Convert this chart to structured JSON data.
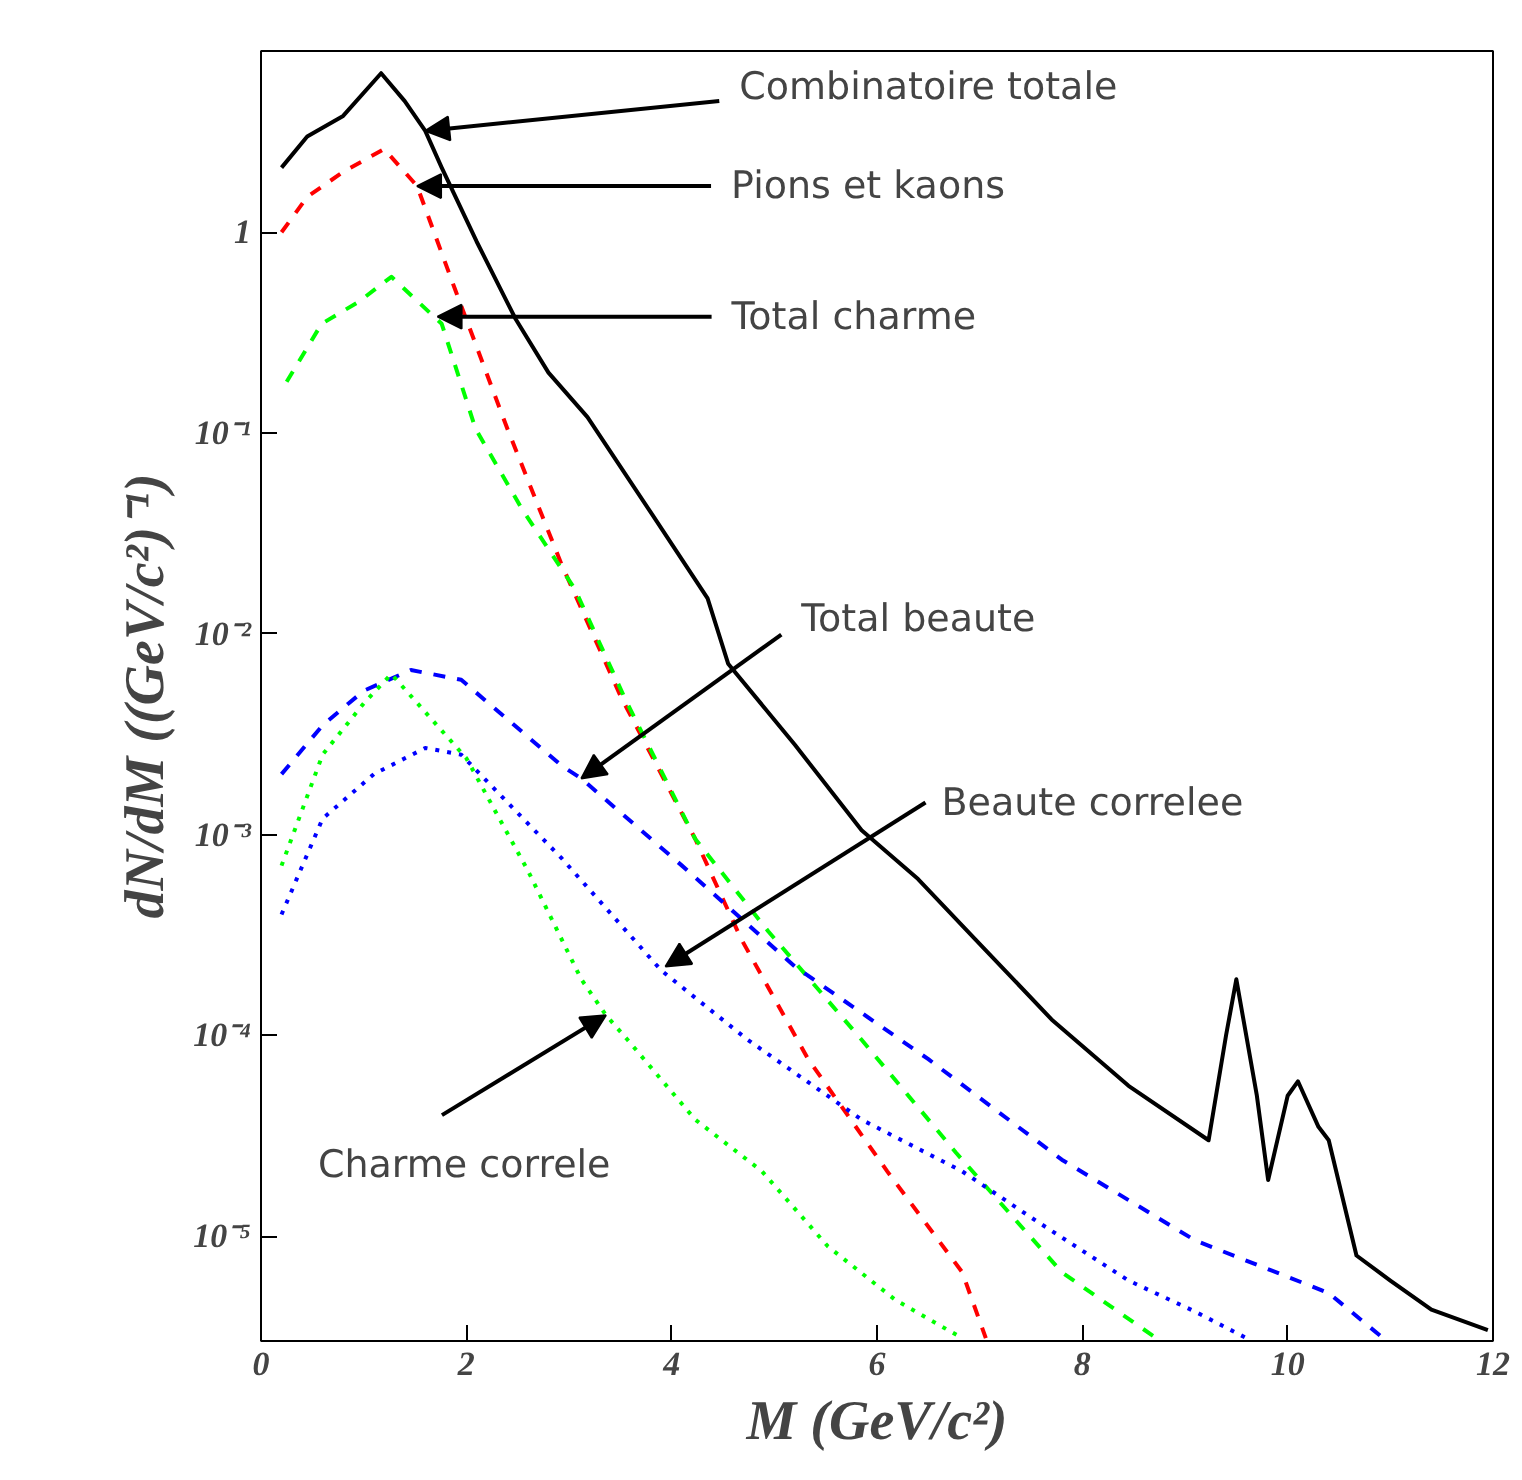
{
  "chart_data": {
    "type": "line",
    "xlabel": "M (GeV/c²)",
    "ylabel": "dN/dM ((GeV/c²)⁻¹)",
    "log": true,
    "grid": false,
    "xlim": [
      0,
      12
    ],
    "xticks": [
      0,
      2,
      4,
      6,
      8,
      10,
      12
    ],
    "ylim": [
      3e-06,
      8
    ],
    "yticks": [
      {
        "value": 1e-05,
        "label": "10⁻⁵"
      },
      {
        "value": 0.0001,
        "label": "10⁻⁴"
      },
      {
        "value": 0.001,
        "label": "10⁻³"
      },
      {
        "value": 0.01,
        "label": "10⁻²"
      },
      {
        "value": 0.1,
        "label": "10⁻¹"
      },
      {
        "value": 1,
        "label": "1"
      }
    ],
    "series": [
      {
        "color": "#000000",
        "line_style": "solid",
        "x": [
          0.2,
          0.45,
          0.8,
          1.17,
          1.4,
          1.6,
          1.76,
          2.1,
          2.48,
          2.8,
          3.18,
          3.8,
          4.35,
          4.55,
          5.2,
          5.85,
          6.4,
          6.96,
          7.7,
          8.45,
          9.23,
          9.4,
          9.5,
          9.7,
          9.81,
          10.0,
          10.1,
          10.3,
          10.4,
          10.67,
          11.0,
          11.4,
          11.95
        ],
        "values": [
          2.1,
          3.0,
          3.8,
          6.2,
          4.5,
          3.2,
          2.1,
          0.9,
          0.37,
          0.2,
          0.12,
          0.04,
          0.015,
          0.0071,
          0.0028,
          0.00105,
          0.0006,
          0.0003,
          0.00012,
          5.6e-05,
          3e-05,
          0.0001,
          0.00019,
          5e-05,
          1.9e-05,
          5e-05,
          5.9e-05,
          3.5e-05,
          3e-05,
          8e-06,
          6e-06,
          4.3e-06,
          3.4e-06
        ]
      },
      {
        "color": "#ff0000",
        "line_style": "dashed",
        "x": [
          0.2,
          0.45,
          0.8,
          1.2,
          1.52,
          1.89,
          2.4,
          2.93,
          3.51,
          4.23,
          4.68,
          5.33,
          6.1,
          6.83,
          7.06
        ],
        "values": [
          1.0,
          1.5,
          2.0,
          2.6,
          1.7,
          0.52,
          0.105,
          0.022,
          0.0048,
          0.00095,
          0.0003,
          7.6e-05,
          2.1e-05,
          6.6e-06,
          3.1e-06
        ]
      },
      {
        "color": "#00ff00",
        "line_style": "dashed",
        "x": [
          0.25,
          0.59,
          0.95,
          1.27,
          1.76,
          2.09,
          2.54,
          3.06,
          3.55,
          4.23,
          4.94,
          5.85,
          6.77,
          7.8,
          8.72
        ],
        "values": [
          0.18,
          0.35,
          0.45,
          0.6,
          0.35,
          0.105,
          0.042,
          0.0166,
          0.0047,
          0.00095,
          0.00033,
          9.5e-05,
          2.6e-05,
          6.6e-06,
          3.1e-06
        ]
      },
      {
        "color": "#0000ff",
        "line_style": "dashed",
        "x": [
          0.2,
          0.6,
          1.0,
          1.46,
          1.95,
          2.93,
          3.12,
          4.1,
          5.2,
          6.5,
          7.8,
          9.1,
          10.4,
          10.93
        ],
        "values": [
          0.002,
          0.0035,
          0.0052,
          0.0066,
          0.0059,
          0.0022,
          0.0019,
          0.0007,
          0.00022,
          7.6e-05,
          2.4e-05,
          9.5e-06,
          5.2e-06,
          3.1e-06
        ]
      },
      {
        "color": "#0000ff",
        "line_style": "dotted",
        "x": [
          0.2,
          0.6,
          1.1,
          1.6,
          1.95,
          2.93,
          3.9,
          4.74,
          5.85,
          6.83,
          7.54,
          8.45,
          9.1,
          9.6
        ],
        "values": [
          0.0004,
          0.0012,
          0.002,
          0.0027,
          0.0025,
          0.00076,
          0.00021,
          9.5e-05,
          3.8e-05,
          2.1e-05,
          1.2e-05,
          6e-06,
          4.2e-06,
          3.1e-06
        ]
      },
      {
        "color": "#00ff00",
        "line_style": "dotted",
        "x": [
          0.2,
          0.6,
          1.0,
          1.27,
          2.0,
          2.6,
          3.12,
          3.36,
          3.57,
          4.23,
          4.88,
          5.52,
          6.18,
          6.83
        ],
        "values": [
          0.0007,
          0.0025,
          0.0045,
          0.0063,
          0.0024,
          0.00066,
          0.00019,
          0.000126,
          9.5e-05,
          3.8e-05,
          2.1e-05,
          8.9e-06,
          4.8e-06,
          3.1e-06
        ]
      }
    ],
    "annotations": [
      {
        "text": "Combinatoire totale",
        "x": 1.6,
        "y": 3.2
      },
      {
        "text": "Pions et kaons",
        "x": 1.52,
        "y": 1.7
      },
      {
        "text": "Total charme",
        "x": 1.72,
        "y": 0.38
      },
      {
        "text": "Total beaute",
        "x": 3.12,
        "y": 0.0019
      },
      {
        "text": "Beaute correlee",
        "x": 3.94,
        "y": 0.00022
      },
      {
        "text": "Charme correle",
        "x": 3.36,
        "y": 0.000126
      }
    ]
  }
}
